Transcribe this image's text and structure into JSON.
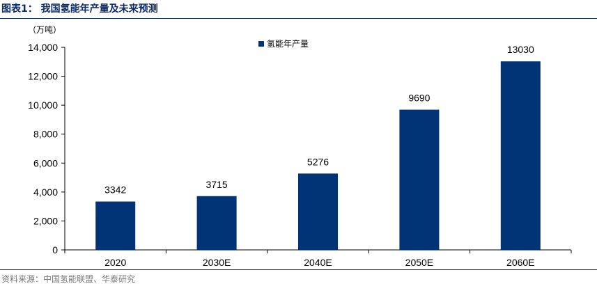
{
  "header": {
    "title": "图表1：  我国氢能年产量及未来预测"
  },
  "source": "资料来源：中国氢能联盟、华泰研究",
  "chart_data": {
    "type": "bar",
    "title": "",
    "unit_label": "（万吨）",
    "categories": [
      "2020",
      "2030E",
      "2040E",
      "2050E",
      "2060E"
    ],
    "series": [
      {
        "name": "氢能年产量",
        "values": [
          3342,
          3715,
          5276,
          9690,
          13030
        ]
      }
    ],
    "ylim": [
      0,
      14000
    ],
    "yticks": [
      0,
      2000,
      4000,
      6000,
      8000,
      10000,
      12000,
      14000
    ],
    "ytick_labels": [
      "0",
      "2,000",
      "4,000",
      "6,000",
      "8,000",
      "10,000",
      "12,000",
      "14,000"
    ],
    "data_labels": [
      "3342",
      "3715",
      "5276",
      "9690",
      "13030"
    ],
    "grid": false,
    "legend_position": "top-center",
    "colors": {
      "bar": "#003476",
      "axis": "#000000",
      "text": "#000000"
    }
  }
}
